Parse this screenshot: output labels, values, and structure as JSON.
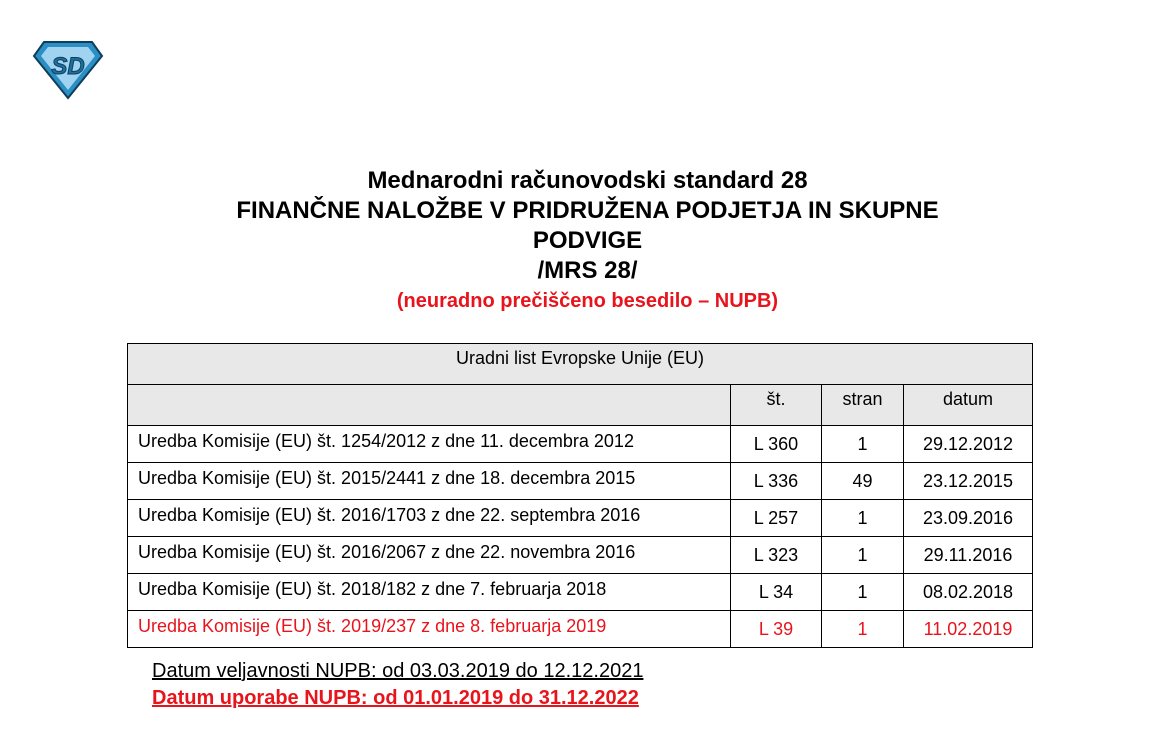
{
  "logo": {
    "text": "SD",
    "color": "#2b8fc4"
  },
  "title": {
    "line1": "Mednarodni računovodski standard 28",
    "line2": "FINANČNE NALOŽBE V PRIDRUŽENA PODJETJA IN SKUPNE",
    "line3": "PODVIGE",
    "line4": "/MRS 28/",
    "subtitle": "(neuradno prečiščeno besedilo – NUPB)"
  },
  "table": {
    "header": "Uradni list Evropske Unije (EU)",
    "columns": [
      "",
      "št.",
      "stran",
      "datum"
    ],
    "rows": [
      {
        "name": "Uredba Komisije (EU) št. 1254/2012 z dne 11. decembra 2012",
        "st": "L 360",
        "stran": "1",
        "datum": "29.12.2012"
      },
      {
        "name": "Uredba Komisije (EU) št. 2015/2441 z dne 18. decembra 2015",
        "st": "L 336",
        "stran": "49",
        "datum": "23.12.2015"
      },
      {
        "name": "Uredba Komisije (EU) št. 2016/1703 z dne 22. septembra 2016",
        "st": "L 257",
        "stran": "1",
        "datum": "23.09.2016"
      },
      {
        "name": "Uredba Komisije (EU) št. 2016/2067 z dne 22. novembra 2016",
        "st": "L 323",
        "stran": "1",
        "datum": "29.11.2016"
      },
      {
        "name": "Uredba Komisije (EU) št. 2018/182 z dne 7. februarja 2018",
        "st": "L 34",
        "stran": "1",
        "datum": "08.02.2018"
      },
      {
        "name": "Uredba Komisije (EU) št. 2019/237 z dne 8. februarja 2019",
        "st": "L 39",
        "stran": "1",
        "datum": "11.02.2019"
      }
    ]
  },
  "footer": {
    "validity": "Datum veljavnosti NUPB: od 03.03.2019 do 12.12.2021",
    "usage": "Datum uporabe NUPB: od 01.01.2019 do 31.12.2022"
  },
  "colors": {
    "accent_red": "#e8141c",
    "header_gray": "#e8e8e8"
  }
}
